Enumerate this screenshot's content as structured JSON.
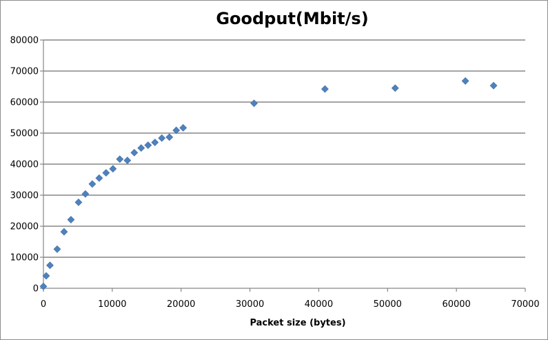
{
  "chart_data": {
    "type": "scatter",
    "title": "Goodput(Mbit/s)",
    "xlabel": "Packet size (bytes)",
    "ylabel": "",
    "xlim": [
      0,
      70000
    ],
    "ylim": [
      0,
      80000
    ],
    "x_ticks": [
      0,
      10000,
      20000,
      30000,
      40000,
      50000,
      60000,
      70000
    ],
    "y_ticks": [
      0,
      10000,
      20000,
      30000,
      40000,
      50000,
      60000,
      70000,
      80000
    ],
    "grid": "horizontal",
    "legend": "none",
    "marker": "diamond",
    "color": "#4f81bd",
    "x": [
      0,
      400,
      950,
      2000,
      3000,
      4000,
      5100,
      6100,
      7100,
      8100,
      9100,
      10100,
      11100,
      12200,
      13200,
      14200,
      15200,
      16200,
      17200,
      18300,
      19300,
      20300,
      30600,
      40900,
      51100,
      61300,
      65400
    ],
    "y": [
      600,
      4000,
      7400,
      12600,
      18200,
      22100,
      27700,
      30400,
      33600,
      35500,
      37200,
      38500,
      41600,
      41200,
      43700,
      45200,
      46100,
      47000,
      48400,
      48700,
      50900,
      51700,
      59600,
      64200,
      64500,
      66800,
      65300
    ]
  }
}
